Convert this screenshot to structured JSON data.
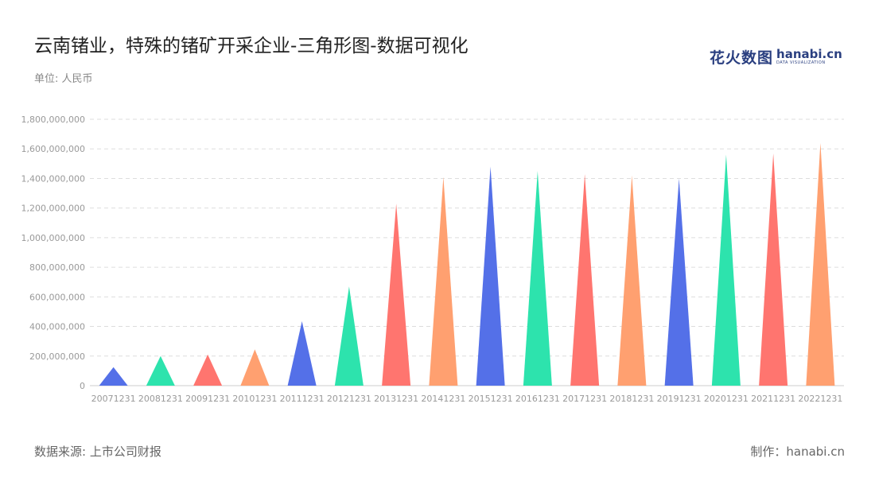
{
  "title": "云南锗业，特殊的锗矿开采企业-三角形图-数据可视化",
  "unit_label": "单位: 人民币",
  "logo": {
    "cn": "花火数图",
    "en": "hanabi.cn",
    "en_sub": "DATA VISUALIZATION"
  },
  "footer": {
    "source": "数据来源: 上市公司财报",
    "credit": "制作：hanabi.cn"
  },
  "chart_data": {
    "type": "bar",
    "style": "triangle",
    "categories": [
      "20071231",
      "20081231",
      "20091231",
      "20101231",
      "20111231",
      "20121231",
      "20131231",
      "20141231",
      "20151231",
      "20161231",
      "20171231",
      "20181231",
      "20191231",
      "20201231",
      "20211231",
      "20221231"
    ],
    "values": [
      125000000,
      200000000,
      210000000,
      245000000,
      435000000,
      670000000,
      1230000000,
      1410000000,
      1480000000,
      1450000000,
      1430000000,
      1420000000,
      1400000000,
      1560000000,
      1570000000,
      1640000000
    ],
    "ylim": [
      0,
      1800000000
    ],
    "yticks": [
      0,
      200000000,
      400000000,
      600000000,
      800000000,
      1000000000,
      1200000000,
      1400000000,
      1600000000,
      1800000000
    ],
    "ytick_labels": [
      "0",
      "200,000,000",
      "400,000,000",
      "600,000,000",
      "800,000,000",
      "1,000,000,000",
      "1,200,000,000",
      "1,400,000,000",
      "1,600,000,000",
      "1,800,000,000"
    ],
    "colors": [
      "#5470e8",
      "#2de3ad",
      "#ff756f",
      "#ffa070"
    ],
    "grid": true,
    "xlabel": "",
    "ylabel": ""
  }
}
